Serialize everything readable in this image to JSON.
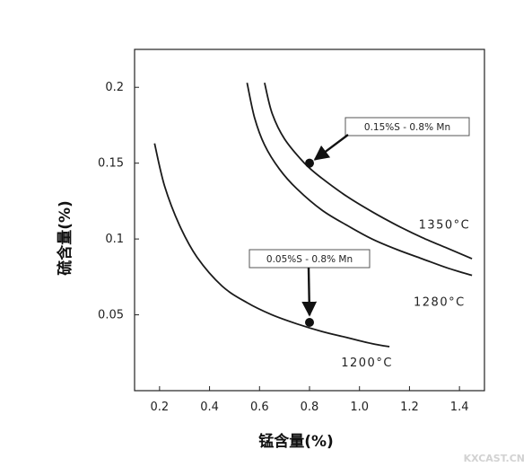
{
  "chart_data": {
    "type": "line",
    "title": "",
    "xlabel": "锰含量(%)",
    "ylabel": "硫含量(%)",
    "xlim": [
      0.1,
      1.5
    ],
    "ylim": [
      0.0,
      0.225
    ],
    "xticks": [
      "0.2",
      "0.4",
      "0.6",
      "0.8",
      "1.0",
      "1.2",
      "1.4"
    ],
    "yticks": [
      "0.05",
      "0.1",
      "0.15",
      "0.2"
    ],
    "grid": false,
    "series": [
      {
        "name": "1200°C",
        "x": [
          0.18,
          0.22,
          0.28,
          0.35,
          0.45,
          0.55,
          0.65,
          0.75,
          0.85,
          0.95,
          1.05,
          1.12
        ],
        "y": [
          0.163,
          0.135,
          0.109,
          0.088,
          0.069,
          0.058,
          0.05,
          0.044,
          0.039,
          0.035,
          0.031,
          0.029
        ]
      },
      {
        "name": "1280°C",
        "x": [
          0.55,
          0.58,
          0.62,
          0.68,
          0.75,
          0.85,
          0.95,
          1.05,
          1.15,
          1.25,
          1.35,
          1.45
        ],
        "y": [
          0.203,
          0.18,
          0.162,
          0.146,
          0.133,
          0.119,
          0.109,
          0.1,
          0.093,
          0.087,
          0.081,
          0.076
        ]
      },
      {
        "name": "1350°C",
        "x": [
          0.62,
          0.65,
          0.7,
          0.78,
          0.85,
          0.95,
          1.05,
          1.15,
          1.25,
          1.35,
          1.45
        ],
        "y": [
          0.203,
          0.183,
          0.166,
          0.15,
          0.14,
          0.128,
          0.118,
          0.109,
          0.101,
          0.094,
          0.087
        ]
      }
    ],
    "points": [
      {
        "label": "0.15%S - 0.8% Mn",
        "x": 0.8,
        "y": 0.15
      },
      {
        "label": "0.05%S - 0.8% Mn",
        "x": 0.8,
        "y": 0.045
      }
    ]
  },
  "watermark": "KXCAST.CN"
}
